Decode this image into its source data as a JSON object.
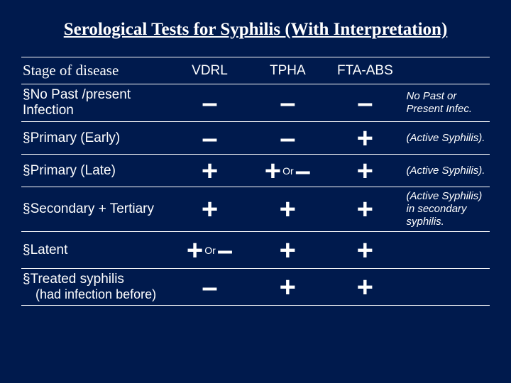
{
  "title": "Serological Tests for Syphilis (With Interpretation)",
  "columns": {
    "stage": "Stage of disease",
    "c1": "VDRL",
    "c2": "TPHA",
    "c3": "FTA-ABS"
  },
  "rows": {
    "r1": {
      "stage": "No Past /present Infection",
      "v": "–",
      "t": "–",
      "f": "–",
      "interp": "No Past or Present Infec."
    },
    "r2": {
      "stage": "Primary (Early)",
      "v": "–",
      "t": "–",
      "f": "+",
      "interp": "(Active Syphilis)."
    },
    "r3": {
      "stage": "Primary (Late)",
      "v": "+",
      "t1": "+",
      "tor": "Or",
      "t2": "–",
      "f": "+",
      "interp": "(Active Syphilis)."
    },
    "r4": {
      "stage": "Secondary + Tertiary",
      "v": "+",
      "t": "+",
      "f": "+",
      "interp": "(Active Syphilis) in secondary syphilis."
    },
    "r5": {
      "stage": "Latent",
      "v1": "+",
      "vor": "Or",
      "v2": "–",
      "t": "+",
      "f": "+"
    },
    "r6": {
      "stage": "Treated syphilis",
      "sub": "(had infection before)",
      "v": "–",
      "t": "+",
      "f": "+"
    }
  },
  "colors": {
    "bg": "#001a4d",
    "text": "#ffffff"
  }
}
